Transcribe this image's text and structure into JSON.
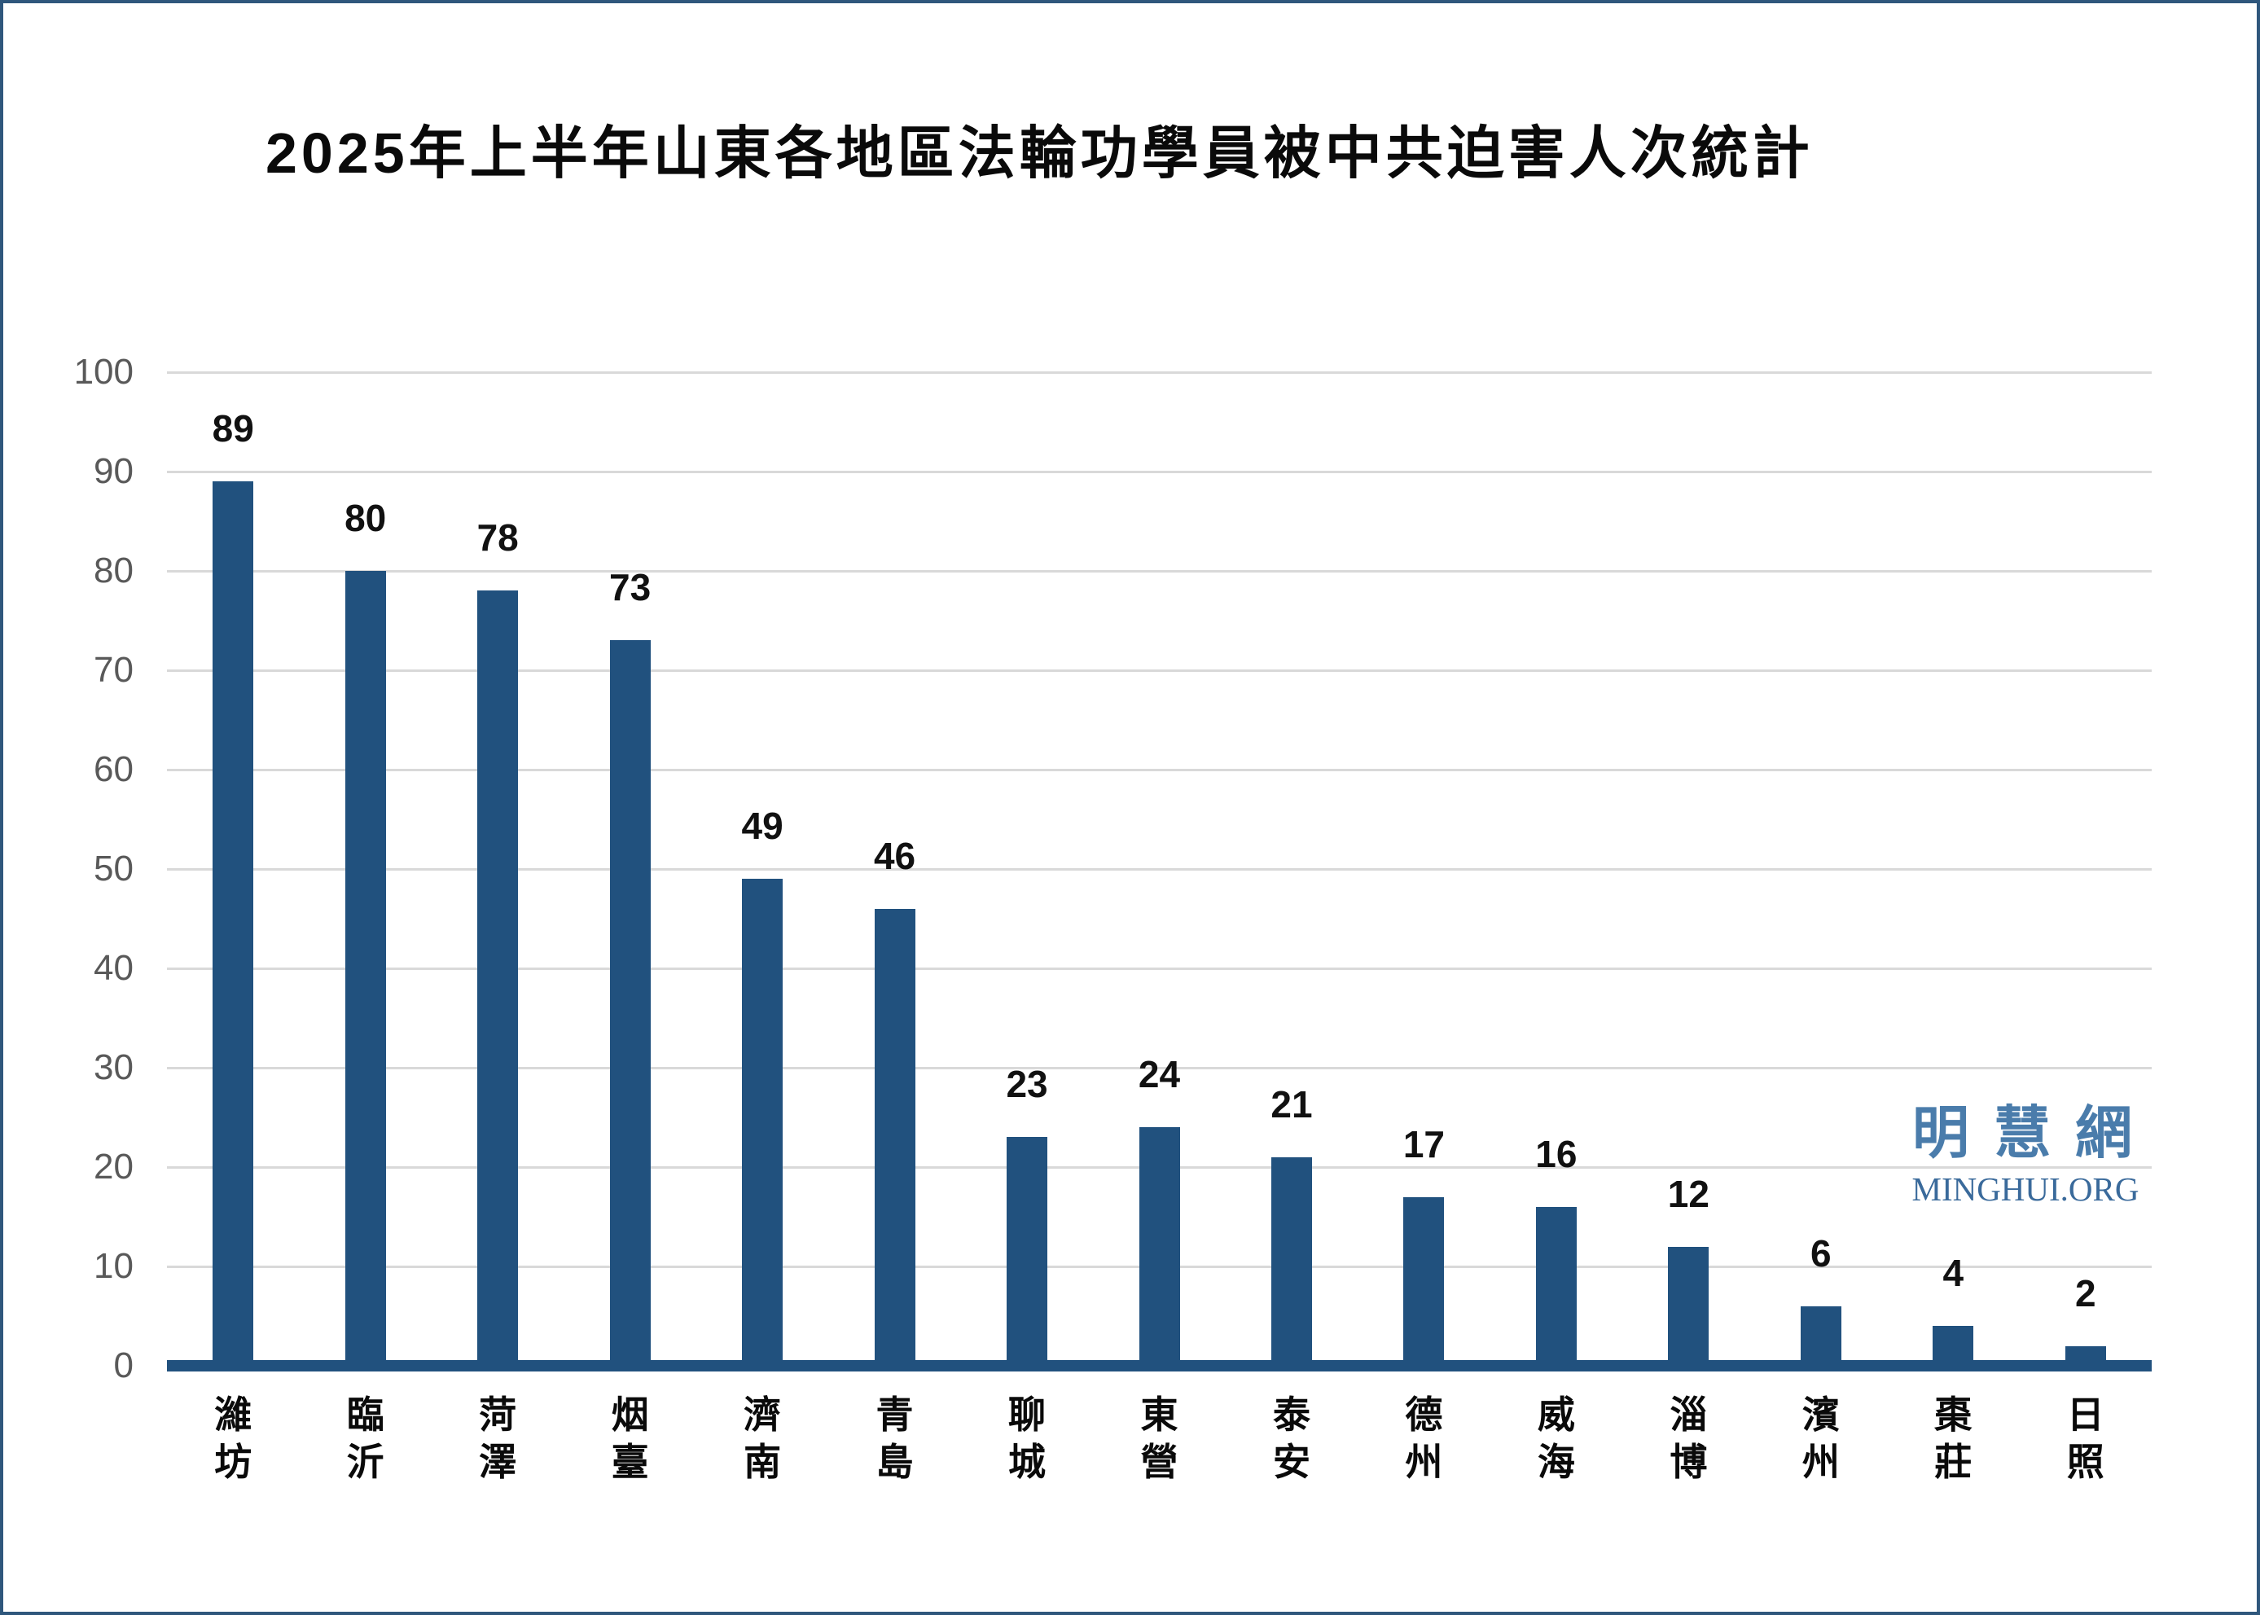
{
  "title": "2025年上半年山東各地區法輪功學員被中共迫害人次統計",
  "watermark": {
    "cjk": "明慧網",
    "latin": "MINGHUI.ORG"
  },
  "colors": {
    "bar": "#21517E",
    "axis": "#21517E",
    "grid": "#D9D9D9",
    "tick_label": "#595959",
    "value_label": "#111111",
    "title": "#0A0A0A",
    "border": "#2F577C",
    "logo_cjk": "#4A7CAB",
    "logo_latin": "#3A6A9B",
    "background": "#FFFFFF"
  },
  "chart_data": {
    "type": "bar",
    "title": "2025年上半年山東各地區法輪功學員被中共迫害人次統計",
    "categories": [
      "濰坊",
      "臨沂",
      "菏澤",
      "烟臺",
      "濟南",
      "青島",
      "聊城",
      "東營",
      "泰安",
      "德州",
      "威海",
      "淄博",
      "濱州",
      "棗莊",
      "日照"
    ],
    "values": [
      89,
      80,
      78,
      73,
      49,
      46,
      23,
      24,
      21,
      17,
      16,
      12,
      6,
      4,
      2
    ],
    "xlabel": "",
    "ylabel": "",
    "ylim": [
      0,
      100
    ],
    "ytick_step": 10,
    "ytick_labels": [
      "0",
      "10",
      "20",
      "30",
      "40",
      "50",
      "60",
      "70",
      "80",
      "90",
      "100"
    ],
    "grid": true,
    "data_labels": true,
    "legend": "none",
    "category_label_orientation": "vertical-stacked"
  }
}
